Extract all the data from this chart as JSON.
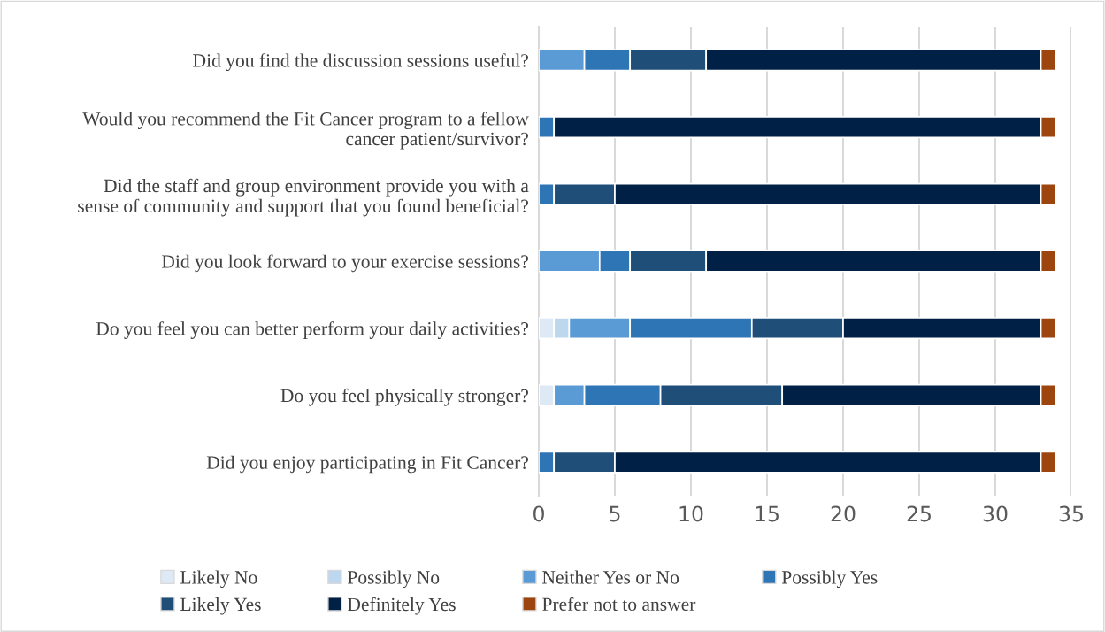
{
  "chart_data": {
    "type": "bar",
    "orientation": "horizontal",
    "stacked": true,
    "categories": [
      "Did you find the discussion sessions useful?",
      "Would you recommend the Fit Cancer program to a fellow\ncancer patient/survivor?",
      "Did the staff and group environment provide you with a\nsense of community and support that you found beneficial?",
      "Did you look forward to your exercise sessions?",
      "Do you feel you can better perform your daily activities?",
      "Do you feel physically stronger?",
      "Did you enjoy participating in Fit Cancer?"
    ],
    "series": [
      {
        "name": "Likely No",
        "color": "#dde9f5",
        "values": [
          0,
          0,
          0,
          0,
          1,
          1,
          0
        ]
      },
      {
        "name": "Possibly No",
        "color": "#bdd7ee",
        "values": [
          0,
          0,
          0,
          0,
          1,
          0,
          0
        ]
      },
      {
        "name": "Neither Yes or No",
        "color": "#5b9bd5",
        "values": [
          3,
          0,
          0,
          4,
          4,
          2,
          0
        ]
      },
      {
        "name": "Possibly Yes",
        "color": "#2e75b6",
        "values": [
          3,
          1,
          1,
          2,
          8,
          5,
          1
        ]
      },
      {
        "name": "Likely Yes",
        "color": "#1f4e79",
        "values": [
          5,
          0,
          4,
          5,
          6,
          8,
          4
        ]
      },
      {
        "name": "Definitely Yes",
        "color": "#002045",
        "values": [
          22,
          32,
          28,
          22,
          13,
          17,
          28
        ]
      },
      {
        "name": "Prefer not to answer",
        "color": "#9c450e",
        "values": [
          1,
          1,
          1,
          1,
          1,
          1,
          1
        ]
      }
    ],
    "xlim": [
      0,
      35
    ],
    "xticks": [
      0,
      5,
      10,
      15,
      20,
      25,
      30,
      35
    ],
    "grid": "x",
    "legend": "bottom"
  }
}
